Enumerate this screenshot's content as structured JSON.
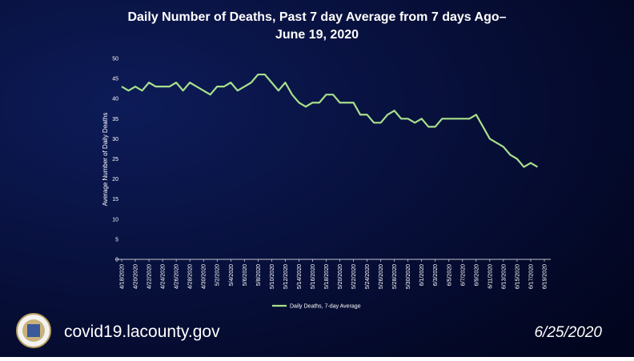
{
  "chart_data": {
    "type": "line",
    "title": [
      "Daily Number of Deaths, Past 7 day Average from 7 days Ago–",
      "June 19, 2020"
    ],
    "y_label": "Average Number of Daily Deaths",
    "categories": [
      "4/18/2020",
      null,
      "4/20/2020",
      null,
      "4/22/2020",
      null,
      "4/24/2020",
      null,
      "4/26/2020",
      null,
      "4/28/2020",
      null,
      "4/30/2020",
      null,
      "5/2/2020",
      null,
      "5/4/2020",
      null,
      "5/6/2020",
      null,
      "5/8/2020",
      null,
      "5/10/2020",
      null,
      "5/12/2020",
      null,
      "5/14/2020",
      null,
      "5/16/2020",
      null,
      "5/18/2020",
      null,
      "5/20/2020",
      null,
      "5/22/2020",
      null,
      "5/24/2020",
      null,
      "5/26/2020",
      null,
      "5/28/2020",
      null,
      "5/30/2020",
      null,
      "6/1/2020",
      null,
      "6/3/2020",
      null,
      "6/5/2020",
      null,
      "6/7/2020",
      null,
      "6/9/2020",
      null,
      "6/11/2020",
      null,
      "6/13/2020",
      null,
      "6/15/2020",
      null,
      "6/17/2020",
      null,
      "6/19/2020"
    ],
    "series": [
      {
        "name": "Daily Deaths, 7-day Average",
        "color": "#a8e08c",
        "values": [
          43,
          42,
          43,
          42,
          44,
          43,
          43,
          43,
          44,
          42,
          44,
          43,
          42,
          41,
          43,
          43,
          44,
          42,
          43,
          44,
          46,
          46,
          44,
          42,
          44,
          41,
          39,
          38,
          39,
          39,
          41,
          41,
          39,
          39,
          39,
          36,
          36,
          34,
          34,
          36,
          37,
          35,
          35,
          34,
          35,
          33,
          33,
          35,
          35,
          35,
          35,
          35,
          36,
          33,
          30,
          29,
          28,
          26,
          25,
          23,
          24,
          23,
          null
        ]
      }
    ],
    "ylim": [
      0,
      50
    ],
    "yticks": [
      0,
      5,
      10,
      15,
      20,
      25,
      30,
      35,
      40,
      45,
      50
    ],
    "legend": "bottom"
  },
  "footer": {
    "url": "covid19.lacounty.gov",
    "date": "6/25/2020"
  }
}
